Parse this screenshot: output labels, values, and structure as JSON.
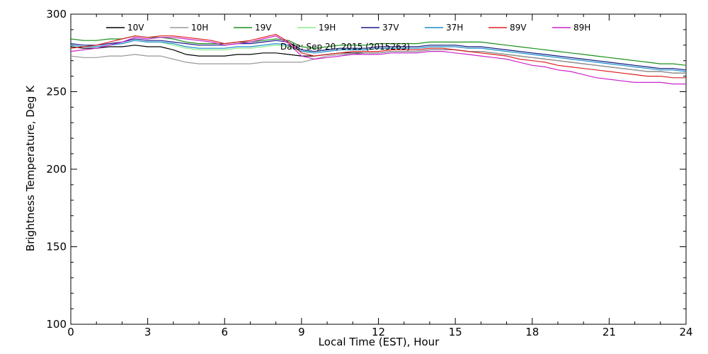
{
  "chart_data": {
    "type": "line",
    "annotation": "Date: Sep 20, 2015 (2015263)",
    "xlabel": "Local Time (EST), Hour",
    "ylabel": "Brightness Temperature, Deg K",
    "xlim": [
      0,
      24
    ],
    "ylim": [
      100,
      300
    ],
    "xticks": [
      0,
      3,
      6,
      9,
      12,
      15,
      18,
      21,
      24
    ],
    "yticks": [
      100,
      150,
      200,
      250,
      300
    ],
    "grid": false,
    "legend_position": "top",
    "x": [
      0,
      0.5,
      1,
      1.5,
      2,
      2.5,
      3,
      3.5,
      4,
      4.5,
      5,
      5.5,
      6,
      6.5,
      7,
      7.5,
      8,
      8.5,
      9,
      9.5,
      10,
      10.5,
      11,
      11.5,
      12,
      12.5,
      13,
      13.5,
      14,
      14.5,
      15,
      15.5,
      16,
      16.5,
      17,
      17.5,
      18,
      18.5,
      19,
      19.5,
      20,
      20.5,
      21,
      21.5,
      22,
      22.5,
      23,
      23.5,
      24
    ],
    "series": [
      {
        "name": "10V",
        "color": "#000000",
        "values": [
          279,
          278,
          278,
          279,
          279,
          280,
          279,
          279,
          277,
          274,
          273,
          273,
          273,
          274,
          274,
          275,
          275,
          274,
          273,
          273,
          274,
          275,
          275,
          275,
          275,
          276,
          276,
          276,
          277,
          277,
          277,
          276,
          276,
          275,
          274,
          273,
          272,
          271,
          270,
          269,
          268,
          267,
          266,
          265,
          264,
          263,
          263,
          262,
          262
        ]
      },
      {
        "name": "10H",
        "color": "#999999",
        "values": [
          273,
          272,
          272,
          273,
          273,
          274,
          273,
          273,
          271,
          269,
          268,
          268,
          268,
          268,
          268,
          269,
          269,
          269,
          269,
          271,
          273,
          274,
          274,
          275,
          275,
          276,
          276,
          276,
          277,
          277,
          277,
          276,
          276,
          275,
          274,
          273,
          272,
          271,
          270,
          269,
          268,
          267,
          266,
          265,
          264,
          263,
          263,
          262,
          262
        ]
      },
      {
        "name": "19V",
        "color": "#1a8f1a",
        "values": [
          284,
          283,
          283,
          284,
          284,
          286,
          285,
          285,
          284,
          282,
          281,
          281,
          281,
          282,
          282,
          283,
          284,
          283,
          279,
          278,
          279,
          280,
          280,
          280,
          281,
          281,
          281,
          281,
          282,
          282,
          282,
          282,
          282,
          281,
          280,
          279,
          278,
          277,
          276,
          275,
          274,
          273,
          272,
          271,
          270,
          269,
          268,
          268,
          267
        ]
      },
      {
        "name": "19H",
        "color": "#88ee88",
        "values": [
          281,
          280,
          280,
          281,
          281,
          283,
          282,
          282,
          280,
          278,
          277,
          277,
          277,
          278,
          278,
          279,
          280,
          279,
          276,
          276,
          277,
          278,
          278,
          278,
          279,
          279,
          279,
          279,
          280,
          280,
          280,
          279,
          279,
          278,
          277,
          276,
          275,
          274,
          273,
          272,
          271,
          270,
          269,
          268,
          267,
          266,
          265,
          265,
          264
        ]
      },
      {
        "name": "37V",
        "color": "#1a1a8c",
        "values": [
          281,
          280,
          280,
          281,
          282,
          284,
          283,
          283,
          282,
          281,
          280,
          280,
          280,
          281,
          281,
          282,
          283,
          282,
          277,
          276,
          277,
          278,
          278,
          278,
          279,
          279,
          279,
          279,
          280,
          280,
          280,
          279,
          279,
          278,
          277,
          276,
          275,
          274,
          273,
          272,
          271,
          270,
          269,
          268,
          267,
          266,
          265,
          265,
          264
        ]
      },
      {
        "name": "37H",
        "color": "#1a8ccc",
        "values": [
          280,
          279,
          279,
          280,
          281,
          283,
          282,
          282,
          281,
          279,
          278,
          278,
          278,
          279,
          279,
          280,
          281,
          280,
          276,
          275,
          276,
          277,
          277,
          277,
          278,
          278,
          278,
          278,
          279,
          279,
          279,
          278,
          278,
          277,
          276,
          275,
          274,
          273,
          272,
          271,
          270,
          269,
          268,
          267,
          266,
          265,
          264,
          264,
          263
        ]
      },
      {
        "name": "89V",
        "color": "#dd2222",
        "values": [
          278,
          279,
          280,
          282,
          284,
          286,
          285,
          286,
          286,
          285,
          284,
          283,
          281,
          282,
          283,
          285,
          287,
          282,
          275,
          273,
          274,
          275,
          276,
          276,
          276,
          277,
          277,
          277,
          278,
          278,
          277,
          276,
          275,
          274,
          273,
          271,
          270,
          269,
          267,
          266,
          265,
          264,
          263,
          262,
          261,
          260,
          260,
          259,
          259
        ]
      },
      {
        "name": "89H",
        "color": "#cc22cc",
        "values": [
          276,
          277,
          278,
          280,
          282,
          285,
          284,
          285,
          285,
          284,
          283,
          282,
          280,
          281,
          282,
          284,
          286,
          281,
          273,
          271,
          272,
          273,
          274,
          274,
          274,
          275,
          275,
          275,
          276,
          276,
          275,
          274,
          273,
          272,
          271,
          269,
          267,
          266,
          264,
          263,
          261,
          259,
          258,
          257,
          256,
          256,
          256,
          255,
          255
        ]
      }
    ]
  }
}
